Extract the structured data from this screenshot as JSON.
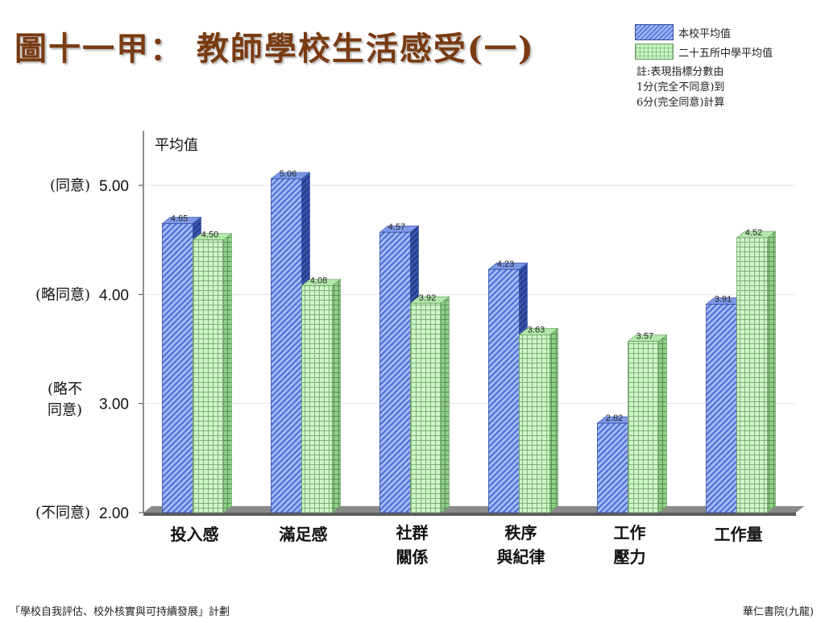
{
  "title": "圖十一甲： 教師學校生活感受(一)",
  "legend": {
    "school": "本校平均值",
    "average": "二十五所中學平均值"
  },
  "note": [
    "註:表現指標分數由",
    "1分(完全不同意)到",
    "6分(完全同意)計算"
  ],
  "footer": {
    "left": "「學校自我評估、校外核實與可持續發展」計劃",
    "right": "華仁書院(九龍)"
  },
  "colors": {
    "school": "#5a7de0",
    "average": "#c9f5c2"
  },
  "chart_data": {
    "type": "bar",
    "ylabel": "平均值",
    "ylim": [
      2,
      5.5
    ],
    "yticks": [
      {
        "value": 5,
        "num": "5.00",
        "label": "(同意)"
      },
      {
        "value": 4,
        "num": "4.00",
        "label": "(略同意)"
      },
      {
        "value": 3,
        "num": "3.00",
        "label": "(略不\n同意)"
      },
      {
        "value": 2,
        "num": "2.00",
        "label": "(不同意)"
      }
    ],
    "categories": [
      "投入感",
      "滿足感",
      "社群\n關係",
      "秩序\n與紀律",
      "工作\n壓力",
      "工作量"
    ],
    "series": [
      {
        "name": "本校平均值",
        "values": [
          4.65,
          5.06,
          4.57,
          4.23,
          2.82,
          3.91
        ],
        "labels": [
          "4.65",
          "5.06",
          "4.57",
          "4.23",
          "2.82",
          "3.91"
        ]
      },
      {
        "name": "二十五所中學平均值",
        "values": [
          4.5,
          4.08,
          3.92,
          3.63,
          3.57,
          4.52
        ],
        "labels": [
          "4.50",
          "4.08",
          "3.92",
          "3.63",
          "3.57",
          "4.52"
        ]
      }
    ],
    "grid": true
  }
}
